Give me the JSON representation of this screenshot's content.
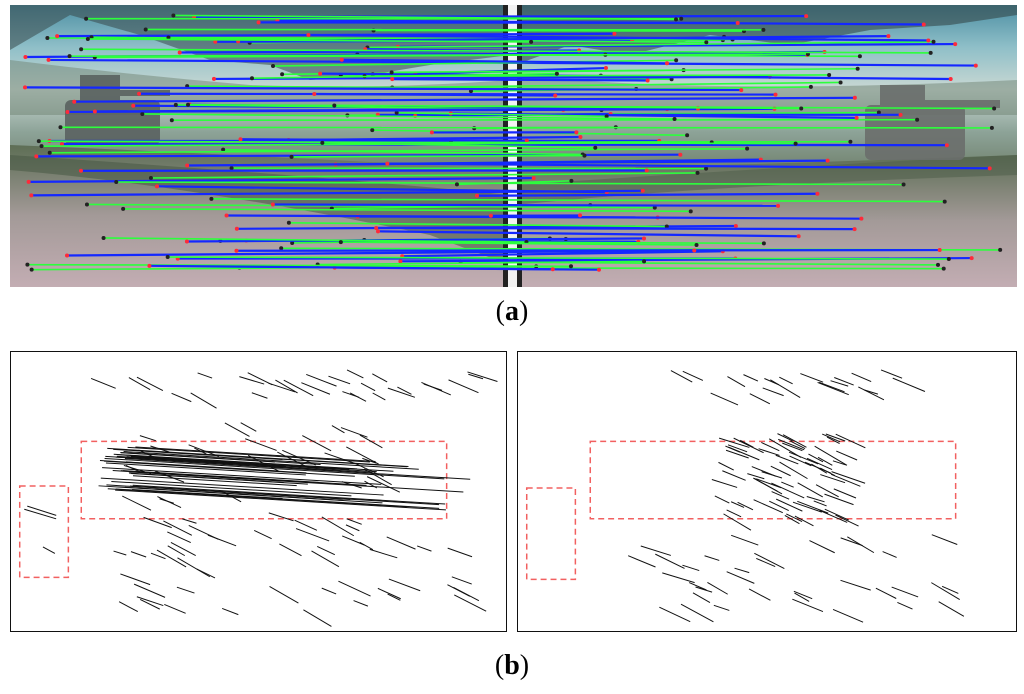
{
  "figure": {
    "caption_a": {
      "open": "(",
      "letter": "a",
      "close": ")"
    },
    "caption_b": {
      "open": "(",
      "letter": "b",
      "close": ")"
    },
    "photo_description_colors": {
      "match_line_blue": "#1428ff",
      "match_line_green": "#2cff3c",
      "keypoint_red": "#ff2a3a",
      "divider_white": "#f2f2f2",
      "roi_dashed_red": "#f26060"
    }
  }
}
